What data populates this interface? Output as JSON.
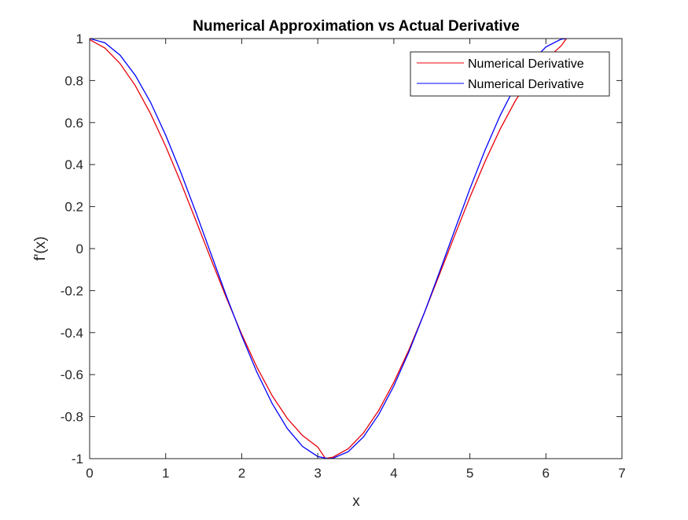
{
  "chart_data": {
    "type": "line",
    "title": "Numerical Approximation vs Actual Derivative",
    "xlabel": "x",
    "ylabel": "f'(x)",
    "xlim": [
      0,
      7
    ],
    "ylim": [
      -1,
      1
    ],
    "xticks": [
      0,
      1,
      2,
      3,
      4,
      5,
      6,
      7
    ],
    "xtick_labels": [
      "0",
      "1",
      "2",
      "3",
      "4",
      "5",
      "6",
      "7"
    ],
    "yticks": [
      -1,
      -0.8,
      -0.6,
      -0.4,
      -0.2,
      0,
      0.2,
      0.4,
      0.6,
      0.8,
      1
    ],
    "ytick_labels": [
      "-1",
      "-0.8",
      "-0.6",
      "-0.4",
      "-0.2",
      "0",
      "0.2",
      "0.4",
      "0.6",
      "0.8",
      "1"
    ],
    "grid": false,
    "legend_position": "top-right",
    "series": [
      {
        "name": "Numerical Derivative",
        "color": "#e8000b",
        "x": [
          0,
          0.2,
          0.4,
          0.6,
          0.8,
          1.0,
          1.2,
          1.4,
          1.6,
          1.8,
          2.0,
          2.2,
          2.4,
          2.6,
          2.8,
          3.0,
          3.1,
          3.2,
          3.4,
          3.6,
          3.8,
          4.0,
          4.2,
          4.4,
          4.6,
          4.8,
          5.0,
          5.2,
          5.4,
          5.6,
          5.8,
          6.0,
          6.2,
          6.27
        ],
        "y": [
          0.995,
          0.955,
          0.881,
          0.776,
          0.643,
          0.487,
          0.314,
          0.131,
          -0.054,
          -0.236,
          -0.408,
          -0.565,
          -0.7,
          -0.809,
          -0.89,
          -0.945,
          -0.999,
          -0.993,
          -0.953,
          -0.878,
          -0.771,
          -0.637,
          -0.481,
          -0.307,
          -0.123,
          0.062,
          0.244,
          0.415,
          0.57,
          0.705,
          0.813,
          0.9,
          0.965,
          1.0
        ]
      },
      {
        "name": "Numerical Derivative",
        "color": "#0000ff",
        "x": [
          0,
          0.2,
          0.4,
          0.6,
          0.8,
          1.0,
          1.2,
          1.4,
          1.6,
          1.8,
          2.0,
          2.2,
          2.4,
          2.6,
          2.8,
          3.0,
          3.14,
          3.2,
          3.4,
          3.6,
          3.8,
          4.0,
          4.2,
          4.4,
          4.6,
          4.8,
          5.0,
          5.2,
          5.4,
          5.6,
          5.8,
          6.0,
          6.2,
          6.28
        ],
        "y": [
          1.0,
          0.98,
          0.921,
          0.825,
          0.697,
          0.54,
          0.362,
          0.17,
          -0.029,
          -0.227,
          -0.416,
          -0.589,
          -0.737,
          -0.857,
          -0.942,
          -0.99,
          -1.0,
          -0.998,
          -0.967,
          -0.897,
          -0.791,
          -0.654,
          -0.49,
          -0.307,
          -0.112,
          0.087,
          0.284,
          0.469,
          0.635,
          0.776,
          0.886,
          0.96,
          0.997,
          1.0
        ]
      }
    ]
  }
}
